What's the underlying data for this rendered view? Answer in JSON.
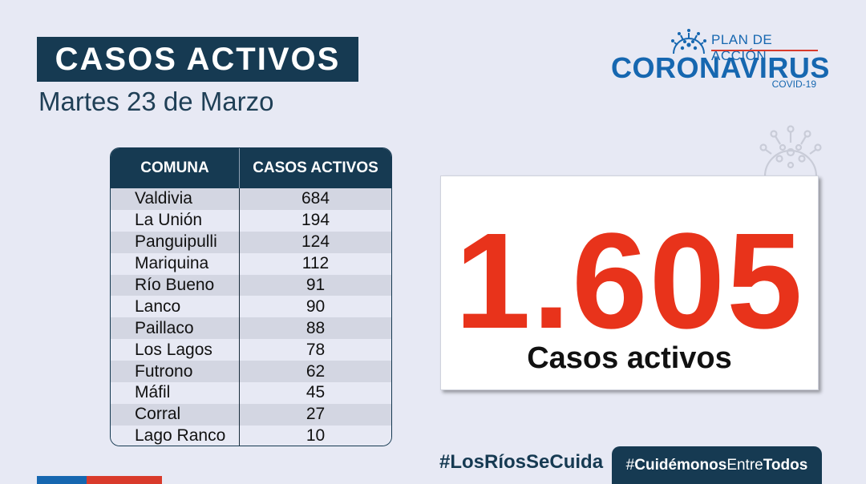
{
  "header": {
    "title": "CASOS ACTIVOS",
    "date": "Martes 23 de Marzo"
  },
  "logo": {
    "top_line": "PLAN DE ACCIÓN",
    "main": "CORONAVIRUS",
    "sub": "COVID-19",
    "icon": "virus-icon",
    "colors": {
      "blue": "#1667b0",
      "red": "#d93a2b"
    }
  },
  "table": {
    "headers": [
      "COMUNA",
      "CASOS ACTIVOS"
    ],
    "rows": [
      {
        "comuna": "Valdivia",
        "casos": "684"
      },
      {
        "comuna": "La Unión",
        "casos": "194"
      },
      {
        "comuna": "Panguipulli",
        "casos": "124"
      },
      {
        "comuna": "Mariquina",
        "casos": "112"
      },
      {
        "comuna": "Río Bueno",
        "casos": "91"
      },
      {
        "comuna": "Lanco",
        "casos": "90"
      },
      {
        "comuna": "Paillaco",
        "casos": "88"
      },
      {
        "comuna": "Los Lagos",
        "casos": "78"
      },
      {
        "comuna": "Futrono",
        "casos": "62"
      },
      {
        "comuna": "Máfil",
        "casos": "45"
      },
      {
        "comuna": "Corral",
        "casos": "27"
      },
      {
        "comuna": "Lago Ranco",
        "casos": "10"
      }
    ]
  },
  "total": {
    "number": "1.605",
    "label": "Casos activos",
    "color": "#e8331b"
  },
  "footer": {
    "hashtag_left": "#LosRíosSeCuida",
    "hashtag_right_prefix": "#",
    "hashtag_right_a": "Cuidémonos",
    "hashtag_right_b": "Entre",
    "hashtag_right_c": "Todos"
  }
}
